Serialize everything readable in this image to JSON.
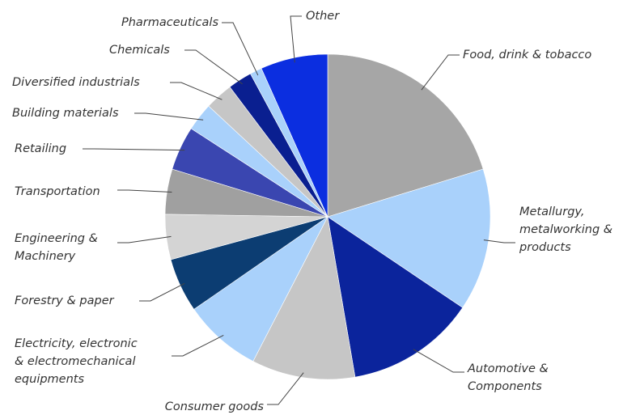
{
  "chart_data": {
    "type": "pie",
    "categories": [
      "Food, drink & tobacco",
      [
        "Metallurgy,",
        "metalworking &",
        "products"
      ],
      [
        "Automotive &",
        "Components"
      ],
      "Consumer goods",
      [
        "Electricity, electronic",
        "& electromechanical",
        "equipments"
      ],
      "Forestry & paper",
      [
        "Engineering &",
        "Machinery"
      ],
      "Transportation",
      "Retailing",
      "Building materials",
      "Diversified industrials",
      "Chemicals",
      "Pharmaceuticals",
      "Other"
    ],
    "values": [
      20.3,
      14.2,
      12.9,
      10.3,
      7.8,
      5.4,
      4.5,
      4.5,
      4.4,
      2.8,
      2.8,
      2.4,
      1.2,
      6.7
    ],
    "colors": [
      "#a6a6a6",
      "#a9d1fb",
      "#0b249c",
      "#c6c6c6",
      "#a9d1fb",
      "#0c3d72",
      "#d4d4d4",
      "#a0a0a0",
      "#3a46b0",
      "#a9d1fb",
      "#c6c6c6",
      "#0a1f90",
      "#a9d1fb",
      "#0b2ee0"
    ]
  }
}
